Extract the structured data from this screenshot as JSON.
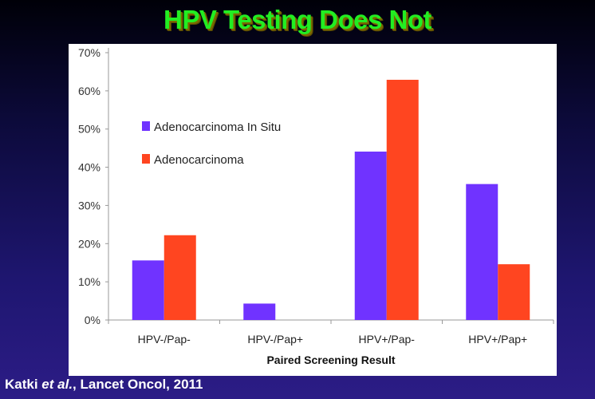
{
  "slide": {
    "title": "HPV Testing Does Not",
    "citation_author": "Katki ",
    "citation_etal": "et al.",
    "citation_rest": ", Lancet Oncol, 2011"
  },
  "chart_data": {
    "type": "bar",
    "title": "",
    "xlabel": "Paired Screening Result",
    "ylabel": "",
    "ylim": [
      0,
      70
    ],
    "yticks": [
      "0%",
      "10%",
      "20%",
      "30%",
      "40%",
      "50%",
      "60%",
      "70%"
    ],
    "categories": [
      "HPV-/Pap-",
      "HPV-/Pap+",
      "HPV+/Pap-",
      "HPV+/Pap+"
    ],
    "series": [
      {
        "name": "Adenocarcinoma In Situ",
        "color": "#7033ff",
        "values": [
          15.6,
          4.3,
          44.1,
          35.6
        ]
      },
      {
        "name": "Adenocarcinoma",
        "color": "#ff4520",
        "values": [
          22.2,
          0,
          62.9,
          14.6
        ]
      }
    ],
    "legend": "upper-left",
    "grid": false
  }
}
